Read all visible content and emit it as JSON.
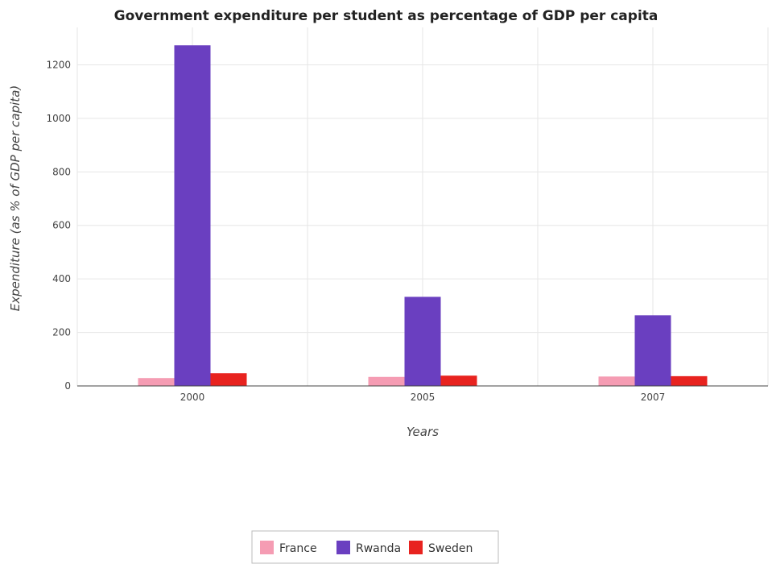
{
  "chart_data": {
    "type": "bar",
    "title": "Government expenditure per student as percentage of GDP per capita",
    "xlabel": "Years",
    "ylabel": "Expenditure (as % of GDP per capita)",
    "categories": [
      "2000",
      "2005",
      "2007"
    ],
    "series": [
      {
        "name": "France",
        "color": "#f59cb3",
        "values": [
          29.5,
          33.8,
          35.2
        ]
      },
      {
        "name": "Rwanda",
        "color": "#6a3fc0",
        "values": [
          1273,
          333,
          264
        ]
      },
      {
        "name": "Sweden",
        "color": "#e8231f",
        "values": [
          47.5,
          38.5,
          36.5
        ]
      }
    ],
    "ylim": [
      0,
      1340
    ],
    "yticks": [
      0,
      200,
      400,
      600,
      800,
      1000,
      1200
    ],
    "grid": true,
    "legend": "bottom-center"
  }
}
